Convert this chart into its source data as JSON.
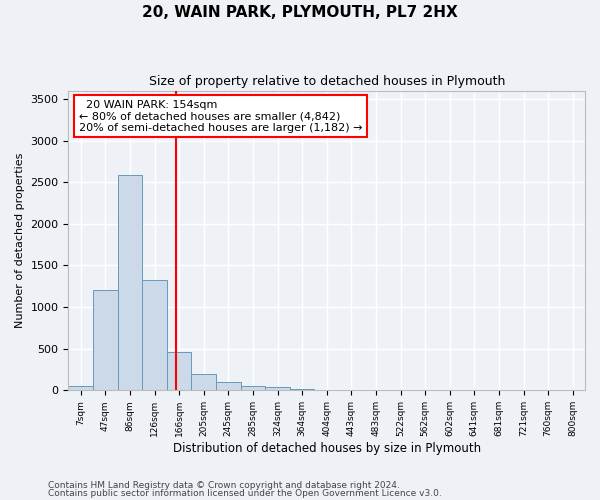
{
  "title1": "20, WAIN PARK, PLYMOUTH, PL7 2HX",
  "title2": "Size of property relative to detached houses in Plymouth",
  "xlabel": "Distribution of detached houses by size in Plymouth",
  "ylabel": "Number of detached properties",
  "bar_labels": [
    "7sqm",
    "47sqm",
    "86sqm",
    "126sqm",
    "166sqm",
    "205sqm",
    "245sqm",
    "285sqm",
    "324sqm",
    "364sqm",
    "404sqm",
    "443sqm",
    "483sqm",
    "522sqm",
    "562sqm",
    "602sqm",
    "641sqm",
    "681sqm",
    "721sqm",
    "760sqm",
    "800sqm"
  ],
  "bar_values": [
    50,
    1200,
    2580,
    1320,
    460,
    195,
    100,
    50,
    40,
    15,
    10,
    5,
    3,
    2,
    2,
    1,
    1,
    1,
    1,
    1,
    0
  ],
  "bar_color": "#ccd9e8",
  "bar_edge_color": "#6699bb",
  "ylim": [
    0,
    3600
  ],
  "yticks": [
    0,
    500,
    1000,
    1500,
    2000,
    2500,
    3000,
    3500
  ],
  "red_line_x": 3.88,
  "annotation_text": "  20 WAIN PARK: 154sqm  \n← 80% of detached houses are smaller (4,842)\n20% of semi-detached houses are larger (1,182) →",
  "footer1": "Contains HM Land Registry data © Crown copyright and database right 2024.",
  "footer2": "Contains public sector information licensed under the Open Government Licence v3.0.",
  "background_color": "#eef2f7",
  "grid_color": "#ffffff"
}
